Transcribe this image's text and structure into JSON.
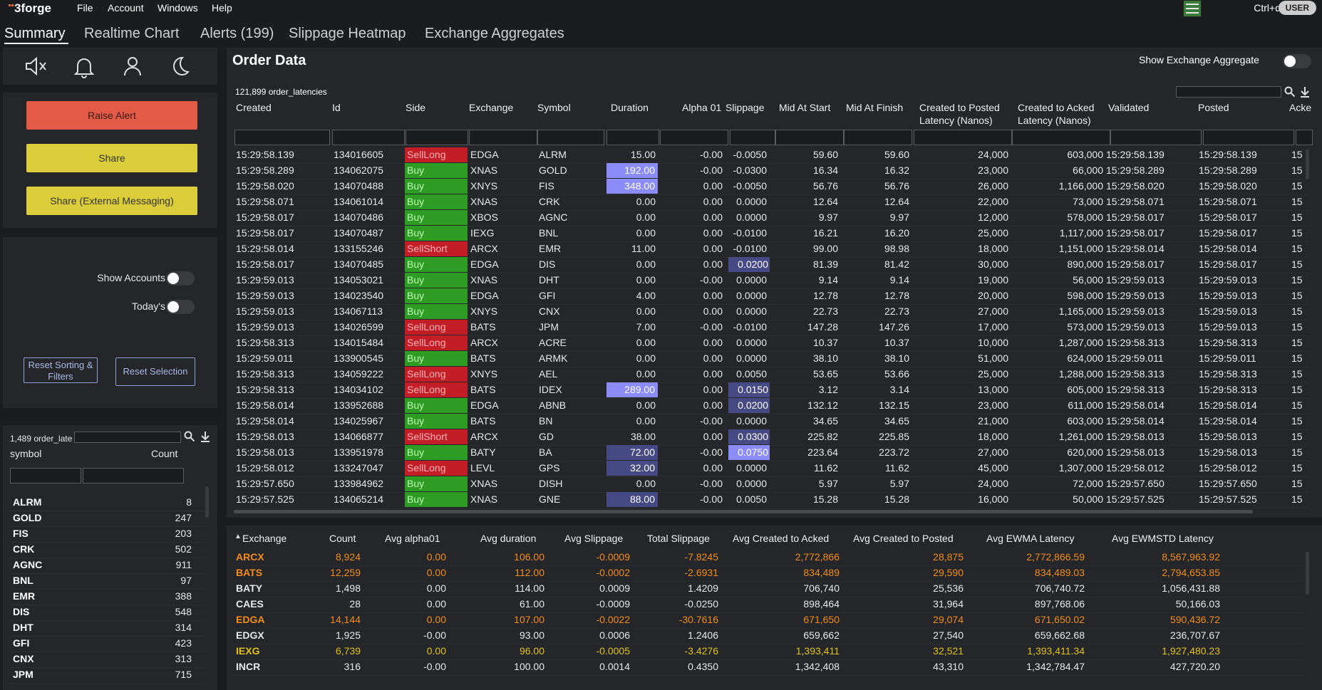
{
  "menu": {
    "logo": "3forge",
    "items": [
      "File",
      "Account",
      "Windows",
      "Help"
    ],
    "shortcut": "Ctrl+d",
    "user_badge": "USER"
  },
  "tabs": [
    "Summary",
    "Realtime Chart",
    "Alerts (199)",
    "Slippage Heatmap",
    "Exchange Aggregates"
  ],
  "actions": {
    "raise_alert": "Raise Alert",
    "share": "Share",
    "share_external": "Share (External Messaging)"
  },
  "settings": {
    "show_accounts": "Show Accounts",
    "todays": "Today's",
    "reset_sorting": "Reset Sorting & Filters",
    "reset_selection": "Reset Selection"
  },
  "symbol_panel": {
    "row_count": "1,489 order_late",
    "headers": {
      "symbol": "symbol",
      "count": "Count"
    },
    "rows": [
      [
        "ALRM",
        "8"
      ],
      [
        "GOLD",
        "247"
      ],
      [
        "FIS",
        "203"
      ],
      [
        "CRK",
        "502"
      ],
      [
        "AGNC",
        "911"
      ],
      [
        "BNL",
        "97"
      ],
      [
        "EMR",
        "388"
      ],
      [
        "DIS",
        "548"
      ],
      [
        "DHT",
        "314"
      ],
      [
        "GFI",
        "423"
      ],
      [
        "CNX",
        "313"
      ],
      [
        "JPM",
        "715"
      ]
    ]
  },
  "order_data": {
    "title": "Order Data",
    "show_aggregate_label": "Show Exchange Aggregate",
    "row_count": "121,899 order_latencies",
    "headers": [
      "Created",
      "Id",
      "Side",
      "Exchange",
      "Symbol",
      "Duration",
      "Alpha 01",
      "Slippage",
      "Mid At Start",
      "Mid At Finish",
      "Created to Posted\nLatency (Nanos)",
      "Created to Acked\nLatency (Nanos)",
      "Validated",
      "Posted",
      "Acke"
    ],
    "rows": [
      [
        "15:29:58.139",
        "134016605",
        "SellLong",
        "EDGA",
        "ALRM",
        "15.00",
        "-0.00",
        "-0.0050",
        "59.60",
        "59.60",
        "24,000",
        "603,000",
        "15:29:58.139",
        "15:29:58.139",
        "15"
      ],
      [
        "15:29:58.289",
        "134062075",
        "Buy",
        "XNAS",
        "GOLD",
        "192.00",
        "-0.00",
        "-0.0300",
        "16.34",
        "16.32",
        "23,000",
        "66,000",
        "15:29:58.289",
        "15:29:58.289",
        "15"
      ],
      [
        "15:29:58.020",
        "134070488",
        "Buy",
        "XNYS",
        "FIS",
        "348.00",
        "0.00",
        "-0.0050",
        "56.76",
        "56.76",
        "26,000",
        "1,166,000",
        "15:29:58.020",
        "15:29:58.020",
        "15"
      ],
      [
        "15:29:58.071",
        "134061014",
        "Buy",
        "XNAS",
        "CRK",
        "0.00",
        "0.00",
        "0.0000",
        "12.64",
        "12.64",
        "22,000",
        "73,000",
        "15:29:58.071",
        "15:29:58.071",
        "15"
      ],
      [
        "15:29:58.017",
        "134070486",
        "Buy",
        "XBOS",
        "AGNC",
        "0.00",
        "0.00",
        "0.0000",
        "9.97",
        "9.97",
        "12,000",
        "578,000",
        "15:29:58.017",
        "15:29:58.017",
        "15"
      ],
      [
        "15:29:58.017",
        "134070487",
        "Buy",
        "IEXG",
        "BNL",
        "0.00",
        "0.00",
        "-0.0100",
        "16.21",
        "16.20",
        "25,000",
        "1,117,000",
        "15:29:58.017",
        "15:29:58.017",
        "15"
      ],
      [
        "15:29:58.014",
        "133155246",
        "SellShort",
        "ARCX",
        "EMR",
        "11.00",
        "0.00",
        "-0.0100",
        "99.00",
        "98.98",
        "18,000",
        "1,151,000",
        "15:29:58.014",
        "15:29:58.014",
        "15"
      ],
      [
        "15:29:58.017",
        "134070485",
        "Buy",
        "EDGA",
        "DIS",
        "0.00",
        "0.00",
        "0.0200",
        "81.39",
        "81.42",
        "30,000",
        "890,000",
        "15:29:58.017",
        "15:29:58.017",
        "15"
      ],
      [
        "15:29:59.013",
        "134053021",
        "Buy",
        "XNAS",
        "DHT",
        "0.00",
        "-0.00",
        "0.0000",
        "9.14",
        "9.14",
        "19,000",
        "56,000",
        "15:29:59.013",
        "15:29:59.013",
        "15"
      ],
      [
        "15:29:59.013",
        "134023540",
        "Buy",
        "EDGA",
        "GFI",
        "4.00",
        "0.00",
        "0.0000",
        "12.78",
        "12.78",
        "20,000",
        "598,000",
        "15:29:59.013",
        "15:29:59.013",
        "15"
      ],
      [
        "15:29:59.013",
        "134067113",
        "Buy",
        "XNYS",
        "CNX",
        "0.00",
        "0.00",
        "0.0000",
        "22.73",
        "22.73",
        "27,000",
        "1,165,000",
        "15:29:59.013",
        "15:29:59.013",
        "15"
      ],
      [
        "15:29:59.013",
        "134026599",
        "SellLong",
        "BATS",
        "JPM",
        "7.00",
        "-0.00",
        "-0.0100",
        "147.28",
        "147.26",
        "17,000",
        "573,000",
        "15:29:59.013",
        "15:29:59.013",
        "15"
      ],
      [
        "15:29:58.313",
        "134015484",
        "SellLong",
        "ARCX",
        "ACRE",
        "0.00",
        "0.00",
        "0.0000",
        "10.37",
        "10.37",
        "10,000",
        "1,287,000",
        "15:29:58.313",
        "15:29:58.313",
        "15"
      ],
      [
        "15:29:59.011",
        "133900545",
        "Buy",
        "BATS",
        "ARMK",
        "0.00",
        "0.00",
        "0.0000",
        "38.10",
        "38.10",
        "51,000",
        "624,000",
        "15:29:59.011",
        "15:29:59.011",
        "15"
      ],
      [
        "15:29:58.313",
        "134059222",
        "SellLong",
        "XNYS",
        "AEL",
        "0.00",
        "0.00",
        "0.0050",
        "53.65",
        "53.66",
        "25,000",
        "1,288,000",
        "15:29:58.313",
        "15:29:58.313",
        "15"
      ],
      [
        "15:29:58.313",
        "134034102",
        "SellLong",
        "BATS",
        "IDEX",
        "289.00",
        "0.00",
        "0.0150",
        "3.12",
        "3.14",
        "13,000",
        "605,000",
        "15:29:58.313",
        "15:29:58.313",
        "15"
      ],
      [
        "15:29:58.014",
        "133952688",
        "Buy",
        "EDGA",
        "ABNB",
        "0.00",
        "0.00",
        "0.0200",
        "132.12",
        "132.15",
        "23,000",
        "611,000",
        "15:29:58.014",
        "15:29:58.014",
        "15"
      ],
      [
        "15:29:58.014",
        "134025967",
        "Buy",
        "BATS",
        "BN",
        "0.00",
        "-0.00",
        "0.0000",
        "34.65",
        "34.65",
        "21,000",
        "603,000",
        "15:29:58.014",
        "15:29:58.014",
        "15"
      ],
      [
        "15:29:58.013",
        "134066877",
        "SellShort",
        "ARCX",
        "GD",
        "38.00",
        "0.00",
        "0.0300",
        "225.82",
        "225.85",
        "18,000",
        "1,261,000",
        "15:29:58.013",
        "15:29:58.013",
        "15"
      ],
      [
        "15:29:58.013",
        "133951978",
        "Buy",
        "BATY",
        "BA",
        "72.00",
        "-0.00",
        "0.0750",
        "223.64",
        "223.72",
        "27,000",
        "620,000",
        "15:29:58.013",
        "15:29:58.013",
        "15"
      ],
      [
        "15:29:58.012",
        "133247047",
        "SellLong",
        "LEVL",
        "GPS",
        "32.00",
        "0.00",
        "0.0000",
        "11.62",
        "11.62",
        "45,000",
        "1,307,000",
        "15:29:58.012",
        "15:29:58.012",
        "15"
      ],
      [
        "15:29:57.650",
        "133984962",
        "Buy",
        "XNAS",
        "DISH",
        "0.00",
        "-0.00",
        "0.0000",
        "5.97",
        "5.97",
        "24,000",
        "72,000",
        "15:29:57.650",
        "15:29:57.650",
        "15"
      ],
      [
        "15:29:57.525",
        "134065214",
        "Buy",
        "XNAS",
        "GNE",
        "88.00",
        "-0.00",
        "0.0050",
        "15.28",
        "15.28",
        "16,000",
        "50,000",
        "15:29:57.525",
        "15:29:57.525",
        "15"
      ]
    ],
    "highlights": {
      "duration_strong": [
        1,
        2,
        15
      ],
      "duration_soft": [
        19,
        20,
        22
      ],
      "slippage_soft": [
        7,
        15,
        16,
        18
      ],
      "slippage_strong": [
        19
      ]
    }
  },
  "aggregates": {
    "headers": [
      "Exchange",
      "Count",
      "Avg alpha01",
      "Avg duration",
      "Avg Slippage",
      "Total Slippage",
      "Avg Created to Acked",
      "Avg Created to Posted",
      "Avg EWMA Latency",
      "Avg EWMSTD Latency"
    ],
    "rows": [
      {
        "color": "orange",
        "cells": [
          "ARCX",
          "8,924",
          "0.00",
          "106.00",
          "-0.0009",
          "-7.8245",
          "2,772,866",
          "28,875",
          "2,772,866.59",
          "8,567,963.92"
        ]
      },
      {
        "color": "orange",
        "cells": [
          "BATS",
          "12,259",
          "0.00",
          "112.00",
          "-0.0002",
          "-2.6931",
          "834,489",
          "29,590",
          "834,489.03",
          "2,794,653.85"
        ]
      },
      {
        "color": "plain",
        "cells": [
          "BATY",
          "1,498",
          "0.00",
          "114.00",
          "0.0009",
          "1.4209",
          "706,740",
          "25,536",
          "706,740.72",
          "1,056,431.88"
        ]
      },
      {
        "color": "plain",
        "cells": [
          "CAES",
          "28",
          "0.00",
          "61.00",
          "-0.0009",
          "-0.0250",
          "898,464",
          "31,964",
          "897,768.06",
          "50,166.03"
        ]
      },
      {
        "color": "orange",
        "cells": [
          "EDGA",
          "14,144",
          "0.00",
          "107.00",
          "-0.0022",
          "-30.7616",
          "671,650",
          "29,074",
          "671,650.02",
          "590,436.72"
        ]
      },
      {
        "color": "plain",
        "cells": [
          "EDGX",
          "1,925",
          "-0.00",
          "93.00",
          "0.0006",
          "1.2406",
          "659,662",
          "27,540",
          "659,662.68",
          "236,707.67"
        ]
      },
      {
        "color": "yellow",
        "cells": [
          "IEXG",
          "6,739",
          "0.00",
          "96.00",
          "-0.0005",
          "-3.4276",
          "1,393,411",
          "32,521",
          "1,393,411.34",
          "1,927,480.23"
        ]
      },
      {
        "color": "plain",
        "cells": [
          "INCR",
          "316",
          "-0.00",
          "100.00",
          "0.0014",
          "0.4350",
          "1,342,408",
          "43,310",
          "1,342,784.47",
          "427,720.20"
        ]
      }
    ]
  }
}
